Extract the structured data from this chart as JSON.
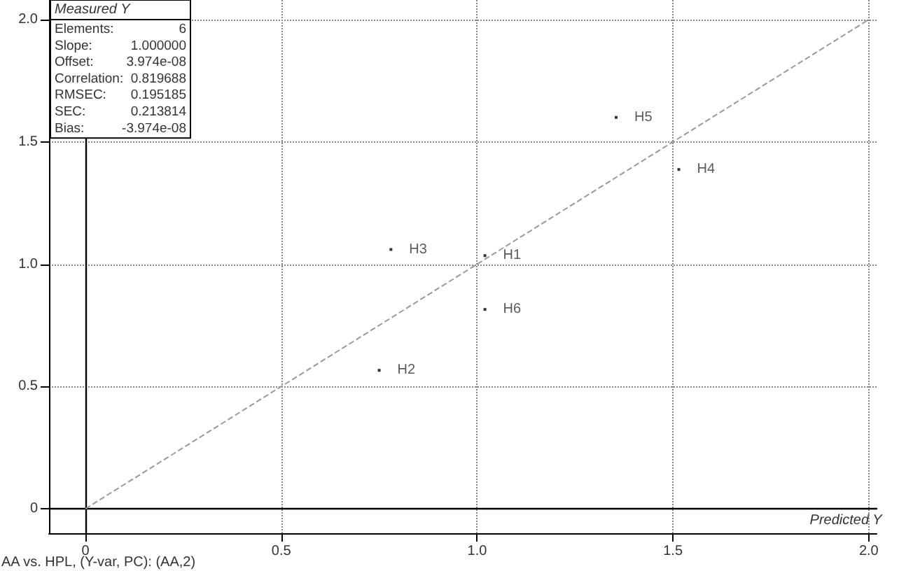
{
  "chart_data": {
    "type": "scatter",
    "xlabel": "Predicted Y",
    "ylabel": "Measured Y",
    "xlim": [
      -0.093,
      2.02
    ],
    "ylim": [
      -0.1,
      2.08
    ],
    "xticks": [
      0,
      0.5,
      {
        "value": 1,
        "label": "1.0"
      },
      1.5,
      {
        "value": 2,
        "label": "2.0"
      }
    ],
    "yticks": [
      0,
      0.5,
      {
        "value": 1,
        "label": "1.0"
      },
      1.5,
      {
        "value": 2,
        "label": "2.0"
      }
    ],
    "grid": true,
    "legend": false,
    "marker": "square",
    "series": [
      {
        "name": "H1",
        "color": "#000000",
        "x": [
          1.02
        ],
        "values": [
          1.035
        ]
      },
      {
        "name": "H2",
        "color": "#000000",
        "x": [
          0.75
        ],
        "values": [
          0.566
        ]
      },
      {
        "name": "H3",
        "color": "#000000",
        "x": [
          0.78
        ],
        "values": [
          1.06
        ]
      },
      {
        "name": "H4",
        "color": "#000000",
        "x": [
          1.515
        ],
        "values": [
          1.387
        ]
      },
      {
        "name": "H5",
        "color": "#000000",
        "x": [
          1.355
        ],
        "values": [
          1.6
        ]
      },
      {
        "name": "H6",
        "color": "#000000",
        "x": [
          1.02
        ],
        "values": [
          0.815
        ]
      },
      {
        "type": "line",
        "color": "#9a9a9a",
        "line_style": "dashed",
        "marker": "none",
        "x": [
          0,
          2
        ],
        "values": [
          0,
          2
        ]
      }
    ],
    "annotations": [
      "Elements:\t6",
      "Slope:\t1.000000",
      "Offset:\t3.974e-08",
      "Correlation:\t0.819688",
      "RMSEC:\t0.195185",
      "SEC:\t0.213814",
      "Bias:\t-3.974e-08",
      "AA vs. HPL, (Y-var, PC): (AA,2)"
    ]
  }
}
